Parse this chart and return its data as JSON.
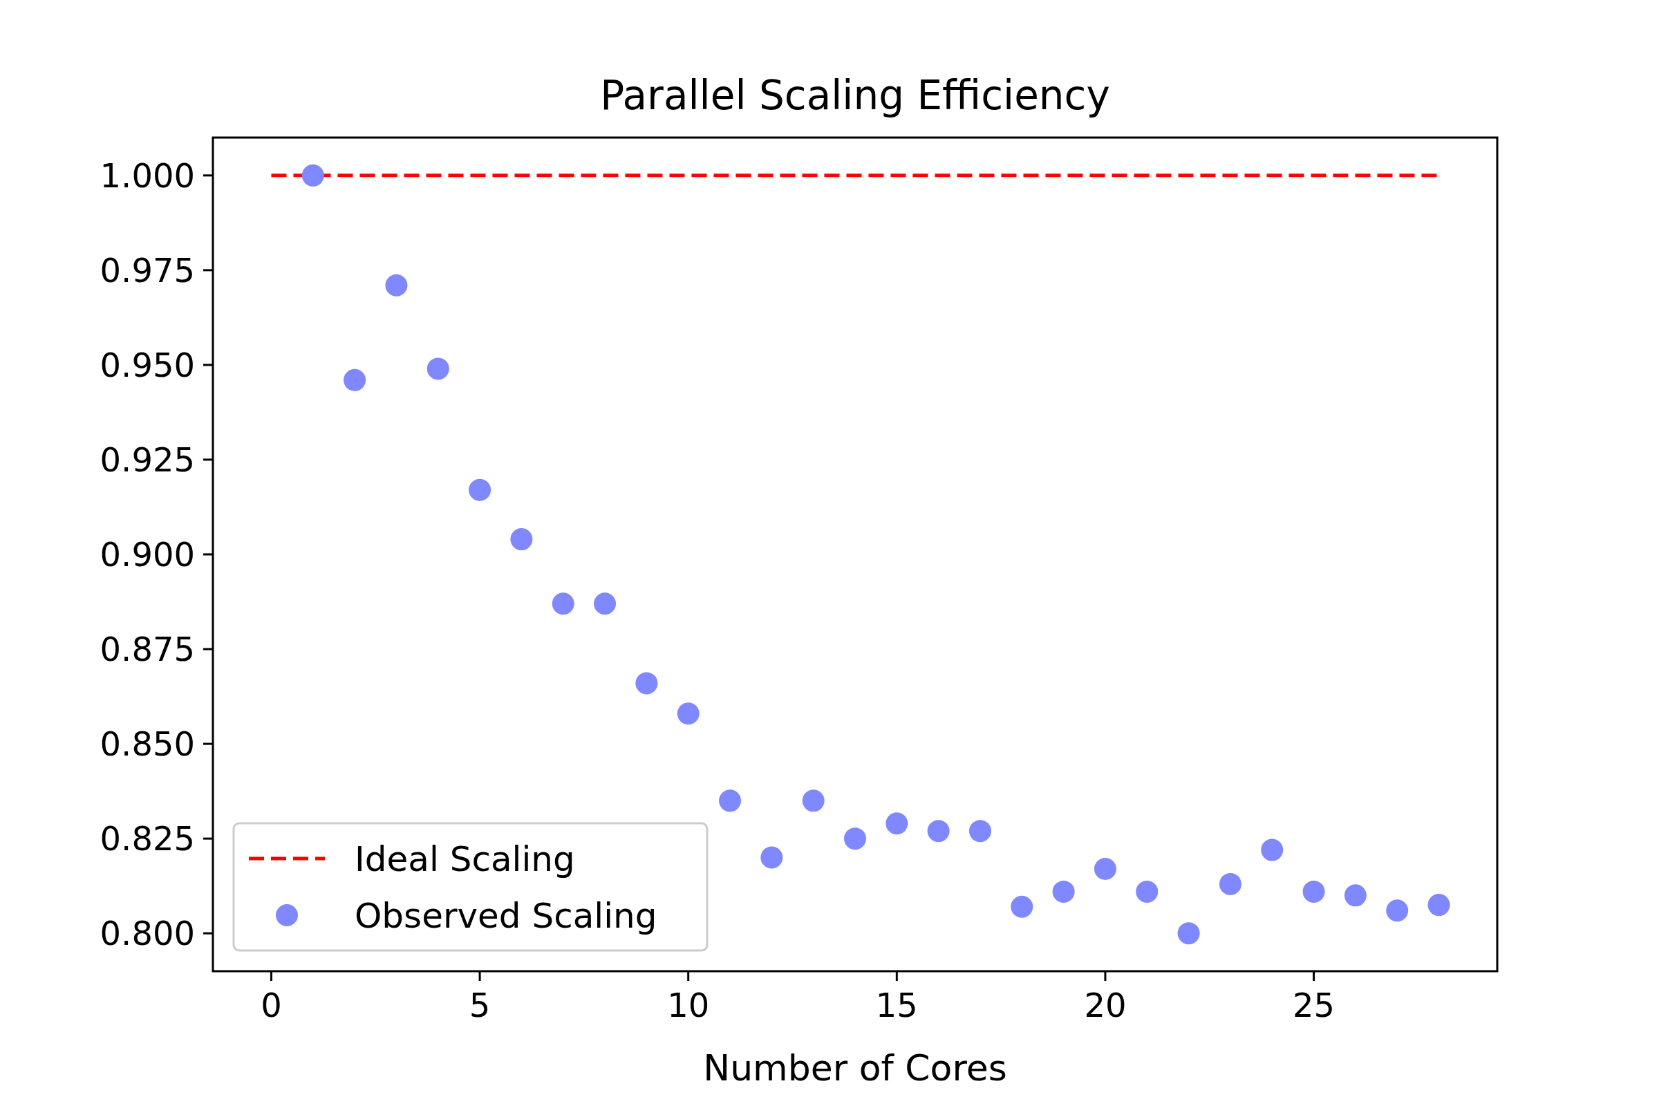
{
  "chart_data": {
    "type": "scatter",
    "title": "Parallel Scaling Efficiency",
    "xlabel": "Number of Cores",
    "xlim": [
      -1.4,
      29.4
    ],
    "xticks": [
      0,
      5,
      10,
      15,
      20,
      25
    ],
    "ylim": [
      0.79,
      1.01
    ],
    "yticks": [
      {
        "value": 0.8,
        "label": "0.800"
      },
      {
        "value": 0.825,
        "label": "0.825"
      },
      {
        "value": 0.85,
        "label": "0.850"
      },
      {
        "value": 0.875,
        "label": "0.875"
      },
      {
        "value": 0.9,
        "label": "0.900"
      },
      {
        "value": 0.925,
        "label": "0.925"
      },
      {
        "value": 0.95,
        "label": "0.950"
      },
      {
        "value": 0.975,
        "label": "0.975"
      },
      {
        "value": 1.0,
        "label": "1.000"
      }
    ],
    "grid": false,
    "legend": "bottom left",
    "series": [
      {
        "name": "Ideal Scaling",
        "type": "line",
        "color": "#ff0000",
        "line_style": "dashed",
        "x": [
          0,
          28
        ],
        "values": [
          1,
          1
        ]
      },
      {
        "name": "Observed Scaling",
        "type": "scatter",
        "color": "#8088ff",
        "marker": "circle",
        "x": [
          1,
          2,
          3,
          4,
          5,
          6,
          7,
          8,
          9,
          10,
          11,
          12,
          13,
          14,
          15,
          16,
          17,
          18,
          19,
          20,
          21,
          22,
          23,
          24,
          25,
          26,
          27,
          28
        ],
        "values": [
          1.0,
          0.946,
          0.971,
          0.949,
          0.917,
          0.904,
          0.887,
          0.887,
          0.866,
          0.858,
          0.835,
          0.82,
          0.835,
          0.825,
          0.829,
          0.827,
          0.827,
          0.807,
          0.811,
          0.817,
          0.811,
          0.8,
          0.813,
          0.822,
          0.811,
          0.81,
          0.806,
          0.8075
        ]
      }
    ]
  }
}
